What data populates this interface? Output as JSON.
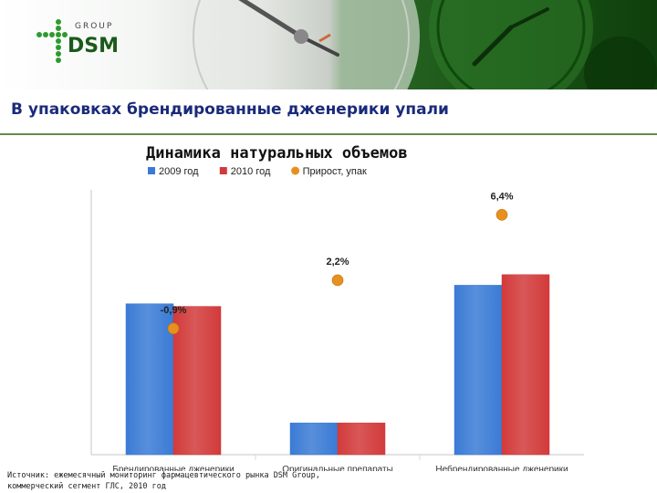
{
  "slide": {
    "title": "В упаковках брендированные дженерики упали"
  },
  "logo": {
    "group_text": "GROUP",
    "brand_text": "DSM"
  },
  "source_note": {
    "line1": "Источник: ежемесячный мониторинг фармацевтического рынка DSM Group,",
    "line2": "коммерческий сегмент ГЛС, 2010 год"
  },
  "colors": {
    "series_2009": "#3a7bd5",
    "series_2010": "#d23a3a",
    "growth_marker": "#e8901e",
    "title": "#1a2a7a"
  },
  "chart_data": {
    "type": "bar",
    "title": "Динамика натуральных объемов",
    "categories": [
      "Брендированные дженерики",
      "Оригинальные препараты",
      "Небрендированные дженерики"
    ],
    "series": [
      {
        "name": "2009 год",
        "values": [
          57,
          12,
          64
        ]
      },
      {
        "name": "2010 год",
        "values": [
          56,
          12,
          68
        ]
      }
    ],
    "growth": {
      "name": "Прирост, упак",
      "values": [
        -0.9,
        2.2,
        6.4
      ],
      "labels": [
        "-0,9%",
        "2,2%",
        "6,4%"
      ]
    },
    "legend_position": "top",
    "ylim": [
      0,
      100
    ],
    "growth_ylim": [
      -9,
      8
    ],
    "grid": false
  }
}
